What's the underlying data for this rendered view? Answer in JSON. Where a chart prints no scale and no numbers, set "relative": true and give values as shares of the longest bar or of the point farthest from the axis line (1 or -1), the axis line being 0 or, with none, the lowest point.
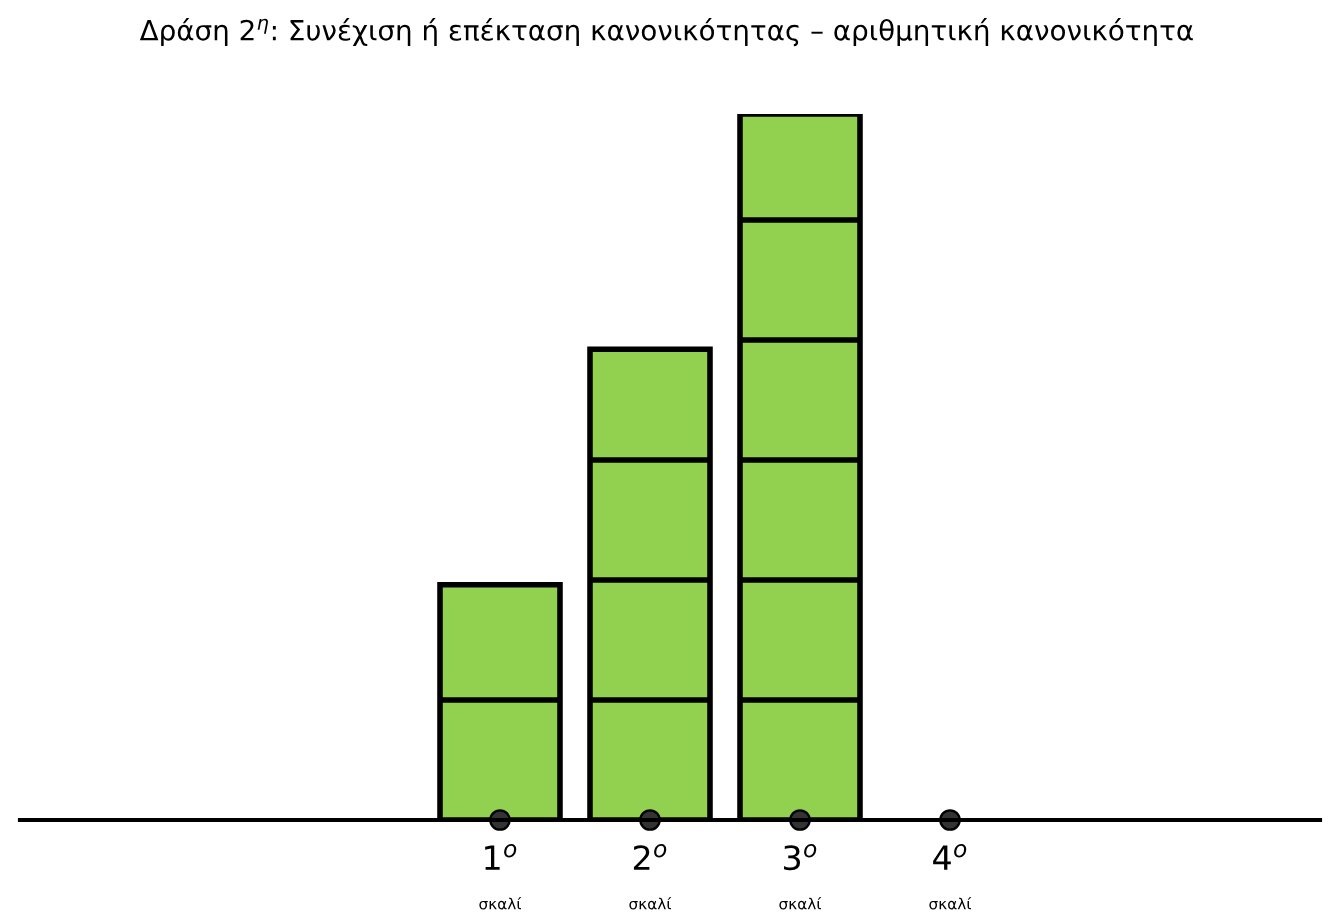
{
  "chart_data": {
    "type": "bar",
    "title": "Δράση 2$^{η}$: Συνέχιση ή επέκταση κανονικότητας – αριθμητική κανονικότητα",
    "categories": [
      "1$^{ο}$",
      "2$^{ο}$",
      "3$^{ο}$",
      "4$^{ο}$"
    ],
    "annotations": [
      "σκαλί",
      "σκαλί",
      "σκαλί",
      "σκαλί"
    ],
    "relative": true,
    "grid": false,
    "legend": false,
    "series": [
      {
        "color": "#92d050",
        "values": [
          0.3333,
          0.6667,
          1,
          null
        ]
      }
    ]
  }
}
